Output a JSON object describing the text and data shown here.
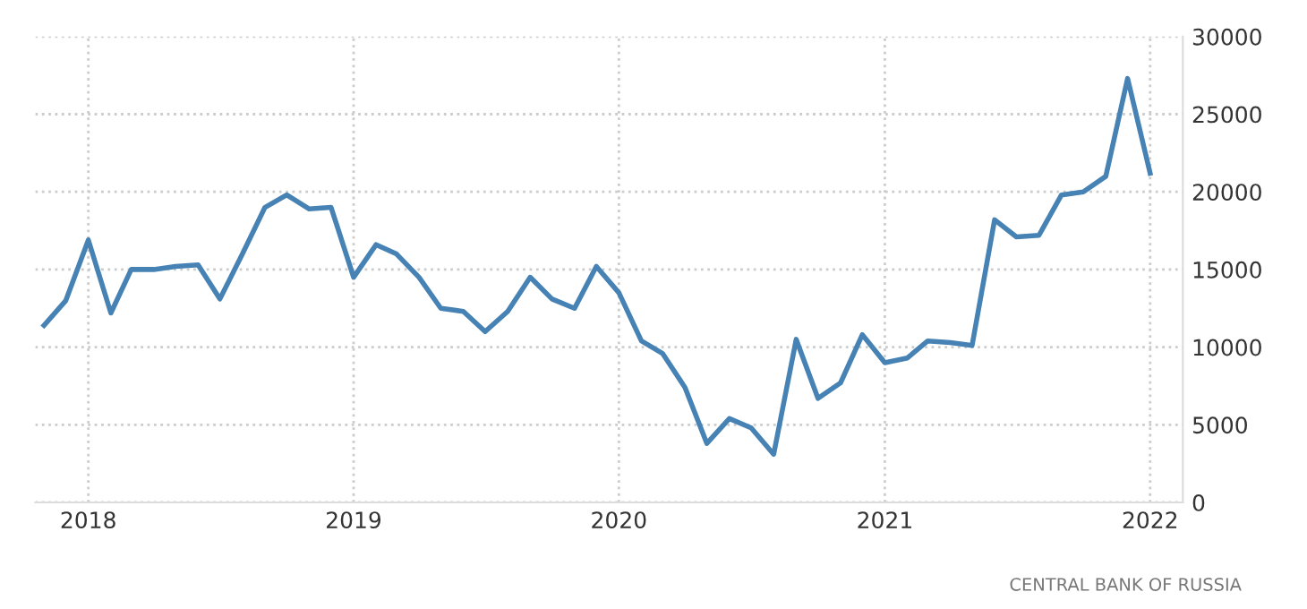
{
  "chart_data": {
    "type": "line",
    "x": [
      "2017-11",
      "2017-12",
      "2018-01",
      "2018-02",
      "2018-03",
      "2018-04",
      "2018-05",
      "2018-06",
      "2018-07",
      "2018-08",
      "2018-09",
      "2018-10",
      "2018-11",
      "2018-12",
      "2019-01",
      "2019-02",
      "2019-03",
      "2019-04",
      "2019-05",
      "2019-06",
      "2019-07",
      "2019-08",
      "2019-09",
      "2019-10",
      "2019-11",
      "2019-12",
      "2020-01",
      "2020-02",
      "2020-03",
      "2020-04",
      "2020-05",
      "2020-06",
      "2020-07",
      "2020-08",
      "2020-09",
      "2020-10",
      "2020-11",
      "2020-12",
      "2021-01",
      "2021-02",
      "2021-03",
      "2021-04",
      "2021-05",
      "2021-06",
      "2021-07",
      "2021-08",
      "2021-09",
      "2021-10",
      "2021-11",
      "2021-12",
      "2022-01"
    ],
    "series": [
      {
        "color": "#4682b4",
        "values": [
          11400,
          13000,
          16900,
          12200,
          15000,
          15000,
          15200,
          15300,
          13100,
          16000,
          19000,
          19800,
          18900,
          19000,
          14500,
          16600,
          16000,
          14500,
          12500,
          12300,
          11000,
          12300,
          14500,
          13100,
          12500,
          15200,
          13500,
          10400,
          9600,
          7400,
          3800,
          5400,
          4800,
          3100,
          10500,
          6700,
          7700,
          10800,
          9000,
          9300,
          10400,
          10300,
          10100,
          18200,
          17100,
          17200,
          19800,
          20000,
          21000,
          27300,
          21200
        ]
      }
    ],
    "xlim": [
      "2017-10-20",
      "2022-02-15"
    ],
    "xticks": [
      {
        "value": "2018-01-01",
        "label": "2018"
      },
      {
        "value": "2019-01-01",
        "label": "2019"
      },
      {
        "value": "2020-01-01",
        "label": "2020"
      },
      {
        "value": "2021-01-01",
        "label": "2021"
      },
      {
        "value": "2022-01-01",
        "label": "2022"
      }
    ],
    "ylim": [
      0,
      30000
    ],
    "yticks": [
      0,
      5000,
      10000,
      15000,
      20000,
      25000,
      30000
    ],
    "grid": true,
    "legend": false,
    "marker": "none",
    "line_style": "solid",
    "annotations": [
      "CENTRAL BANK OF RUSSIA"
    ]
  }
}
